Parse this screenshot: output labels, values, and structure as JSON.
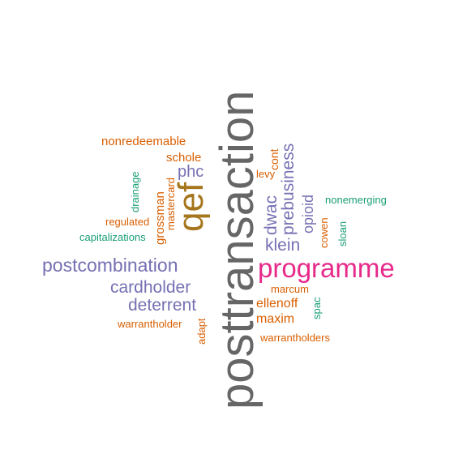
{
  "colors": {
    "gray": "#666666",
    "purple": "#7570b3",
    "orange": "#d95f02",
    "pink": "#e7298a",
    "gold": "#a6761d",
    "teal": "#1b9e77",
    "background": "#ffffff"
  },
  "words": {
    "posttransaction": "posttransaction",
    "programme": "programme",
    "postcombination": "postcombination",
    "qef": "qef",
    "cardholder": "cardholder",
    "deterrent": "deterrent",
    "klein": "klein",
    "prebusiness": "prebusiness",
    "dwac": "dwac",
    "phc": "phc",
    "nonredeemable": "nonredeemable",
    "schole": "schole",
    "grossman": "grossman",
    "mastercard": "mastercard",
    "drainage": "drainage",
    "regulated": "regulated",
    "capitalizations": "capitalizations",
    "levy": "levy",
    "cont": "cont",
    "opioid": "opioid",
    "nonemerging": "nonemerging",
    "cowen": "cowen",
    "sloan": "sloan",
    "marcum": "marcum",
    "ellenoff": "ellenoff",
    "maxim": "maxim",
    "spac": "spac",
    "warrantholder": "warrantholder",
    "adapt": "adapt",
    "warrantholders": "warrantholders"
  }
}
